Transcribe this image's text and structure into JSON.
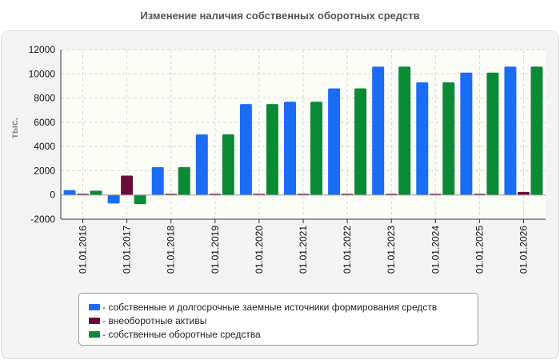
{
  "chart_data": {
    "type": "bar",
    "title": "Изменение наличия собственных оборотных средств",
    "ylabel": "тыс.",
    "xlabel": "",
    "categories": [
      "01.01.2016",
      "01.01.2017",
      "01.01.2018",
      "01.01.2019",
      "01.01.2020",
      "01.01.2021",
      "01.01.2022",
      "01.01.2023",
      "01.01.2024",
      "01.01.2025",
      "01.01.2026"
    ],
    "ylim": [
      -2000,
      12000
    ],
    "yticks": [
      "-2000",
      "0",
      "2000",
      "4000",
      "6000",
      "8000",
      "10000",
      "12000"
    ],
    "grid": true,
    "legend_position": "bottom",
    "series": [
      {
        "name": "- собственные и долгосрочные заемные источники формирования средств",
        "color": "#1a6cf5",
        "values": [
          400,
          -700,
          2300,
          5000,
          7500,
          7700,
          8800,
          10600,
          9300,
          10100,
          10600
        ]
      },
      {
        "name": "- внеоборотные активы",
        "color": "#6b0d3b",
        "values": [
          100,
          1600,
          100,
          100,
          100,
          100,
          100,
          100,
          100,
          100,
          250
        ]
      },
      {
        "name": "- собственные оборотные средства",
        "color": "#0b8a36",
        "values": [
          350,
          -750,
          2300,
          5000,
          7500,
          7700,
          8800,
          10600,
          9300,
          10100,
          10600
        ]
      }
    ]
  }
}
